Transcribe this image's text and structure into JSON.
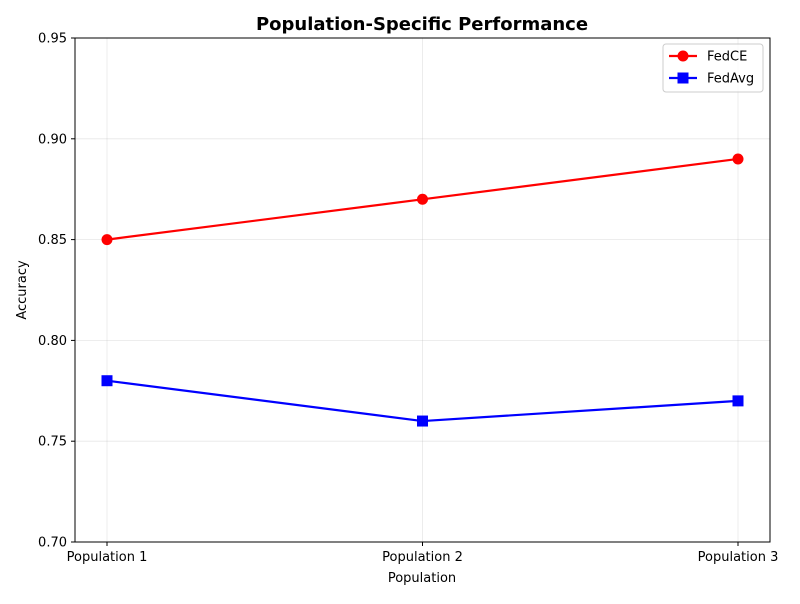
{
  "chart_data": {
    "type": "line",
    "title": "Population-Specific Performance",
    "xlabel": "Population",
    "ylabel": "Accuracy",
    "categories": [
      "Population 1",
      "Population 2",
      "Population 3"
    ],
    "ylim": [
      0.7,
      0.95
    ],
    "yticks": [
      "0.70",
      "0.75",
      "0.80",
      "0.85",
      "0.90",
      "0.95"
    ],
    "grid": true,
    "legend_position": "top-right",
    "series": [
      {
        "name": "FedCE",
        "values": [
          0.85,
          0.87,
          0.89
        ],
        "color": "#ff0000",
        "marker": "circle"
      },
      {
        "name": "FedAvg",
        "values": [
          0.78,
          0.76,
          0.77
        ],
        "color": "#0000ff",
        "marker": "square"
      }
    ]
  }
}
